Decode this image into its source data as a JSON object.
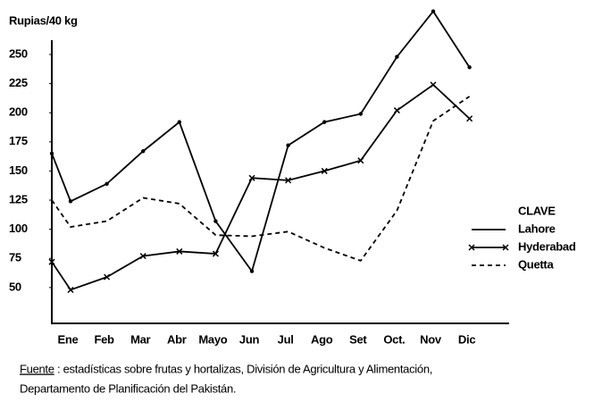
{
  "chart_data": {
    "type": "line",
    "y_axis_label": "Rupias/40 kg",
    "categories": [
      null,
      "Ene",
      "Feb",
      "Mar",
      "Abr",
      "Mayo",
      "Jun",
      "Jul",
      "Ago",
      "Set",
      "Oct.",
      "Nov",
      "Dic"
    ],
    "ylim": [
      20,
      290
    ],
    "yticks": [
      50,
      75,
      100,
      125,
      150,
      175,
      200,
      225,
      250
    ],
    "legend_title": "CLAVE",
    "legend_position": "right",
    "series": [
      {
        "name": "Lahore",
        "color": "#000000",
        "dash": "solid",
        "marker": "dot",
        "values": [
          165,
          124,
          139,
          167,
          192,
          107,
          64,
          172,
          192,
          199,
          248,
          287,
          239
        ]
      },
      {
        "name": "Hyderabad",
        "color": "#000000",
        "dash": "solid",
        "marker": "x",
        "values": [
          72,
          48,
          59,
          77,
          81,
          79,
          144,
          142,
          150,
          159,
          202,
          224,
          195
        ]
      },
      {
        "name": "Quetta",
        "color": "#000000",
        "dash": "dashed",
        "marker": "none",
        "values": [
          125,
          102,
          107,
          127,
          122,
          95,
          94,
          98,
          84,
          73,
          116,
          193,
          214
        ]
      }
    ],
    "source": {
      "label": "Fuente",
      "lines": [
        ": estadísticas sobre frutas y hortalizas, División de Agricultura y Alimentación,",
        "Departamento de Planificación del Pakistán."
      ]
    }
  }
}
